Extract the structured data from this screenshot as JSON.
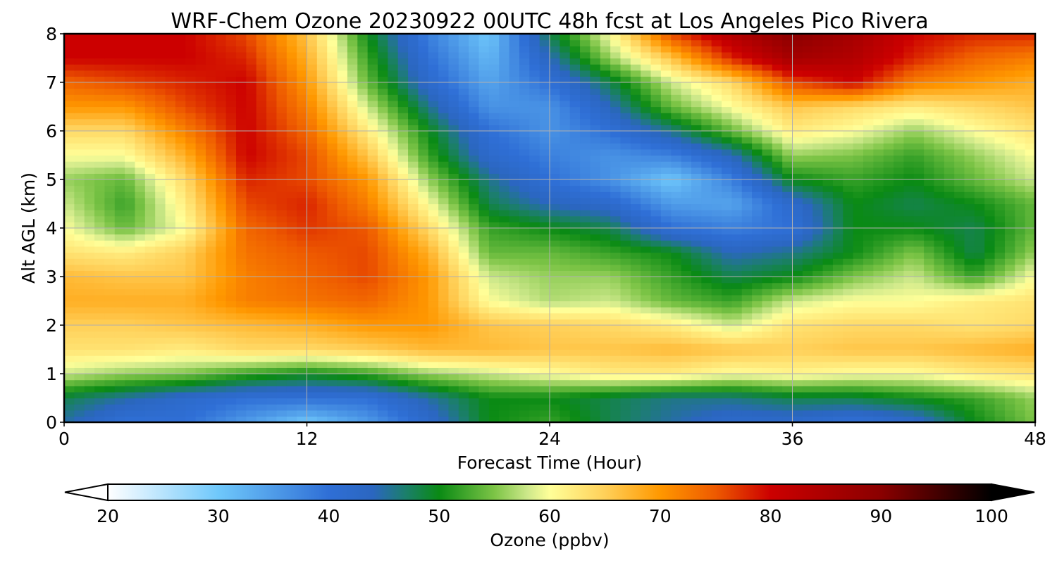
{
  "chart_data": {
    "type": "heatmap",
    "title": "WRF-Chem Ozone  20230922 00UTC 48h fcst at Los Angeles Pico Rivera",
    "xlabel": "Forecast Time (Hour)",
    "ylabel": "Alt AGL (km)",
    "xlim": [
      0,
      48
    ],
    "ylim": [
      0,
      8
    ],
    "xticks": [
      "0",
      "12",
      "24",
      "36",
      "48"
    ],
    "yticks": [
      "0",
      "1",
      "2",
      "3",
      "4",
      "5",
      "6",
      "7",
      "8"
    ],
    "grid": true,
    "x": [
      0,
      3,
      6,
      9,
      12,
      15,
      18,
      21,
      24,
      27,
      30,
      33,
      36,
      39,
      42,
      45,
      48
    ],
    "y": [
      0,
      0.5,
      1,
      1.5,
      2,
      2.5,
      3,
      3.5,
      4,
      4.5,
      5,
      5.5,
      6,
      6.5,
      7,
      7.5,
      8
    ],
    "z": [
      [
        45,
        40,
        40,
        35,
        30,
        35,
        42,
        50,
        52,
        48,
        45,
        42,
        42,
        40,
        42,
        50,
        55
      ],
      [
        48,
        45,
        42,
        40,
        40,
        40,
        45,
        50,
        50,
        48,
        46,
        46,
        48,
        48,
        50,
        52,
        56
      ],
      [
        58,
        56,
        55,
        52,
        50,
        52,
        56,
        58,
        60,
        62,
        62,
        60,
        61,
        60,
        60,
        62,
        63
      ],
      [
        63,
        63,
        62,
        64,
        64,
        65,
        67,
        67,
        66,
        66,
        67,
        66,
        65,
        66,
        66,
        67,
        68
      ],
      [
        65,
        65,
        66,
        67,
        68,
        70,
        70,
        66,
        65,
        64,
        62,
        58,
        63,
        64,
        64,
        63,
        64
      ],
      [
        68,
        68,
        68,
        72,
        73,
        74,
        70,
        60,
        57,
        58,
        54,
        52,
        58,
        60,
        60,
        62,
        63
      ],
      [
        67,
        66,
        66,
        72,
        74,
        76,
        70,
        58,
        56,
        56,
        52,
        48,
        50,
        55,
        58,
        52,
        60
      ],
      [
        63,
        62,
        65,
        73,
        75,
        76,
        68,
        54,
        54,
        52,
        50,
        44,
        46,
        50,
        55,
        48,
        56
      ],
      [
        60,
        54,
        60,
        74,
        77,
        75,
        64,
        52,
        50,
        48,
        40,
        38,
        40,
        50,
        50,
        48,
        54
      ],
      [
        58,
        52,
        62,
        76,
        78,
        72,
        60,
        48,
        44,
        42,
        35,
        34,
        42,
        50,
        48,
        50,
        54
      ],
      [
        56,
        54,
        64,
        78,
        76,
        70,
        56,
        46,
        40,
        36,
        30,
        38,
        50,
        52,
        50,
        54,
        58
      ],
      [
        60,
        60,
        68,
        80,
        76,
        66,
        52,
        42,
        38,
        36,
        38,
        44,
        56,
        55,
        52,
        56,
        60
      ],
      [
        64,
        64,
        72,
        80,
        74,
        62,
        50,
        40,
        36,
        40,
        46,
        54,
        62,
        60,
        56,
        60,
        63
      ],
      [
        70,
        70,
        76,
        80,
        72,
        58,
        46,
        36,
        36,
        44,
        54,
        60,
        66,
        64,
        62,
        64,
        66
      ],
      [
        74,
        76,
        78,
        80,
        70,
        54,
        42,
        34,
        40,
        48,
        58,
        64,
        76,
        80,
        72,
        70,
        68
      ],
      [
        80,
        80,
        80,
        78,
        68,
        52,
        40,
        32,
        44,
        56,
        66,
        78,
        86,
        84,
        78,
        74,
        72
      ],
      [
        80,
        80,
        80,
        76,
        66,
        50,
        38,
        30,
        48,
        60,
        76,
        84,
        90,
        86,
        80,
        78,
        78
      ]
    ],
    "colorbar": {
      "label": "Ozone  (ppbv)",
      "min": 20,
      "max": 100,
      "ticks": [
        "20",
        "30",
        "40",
        "50",
        "60",
        "70",
        "80",
        "90",
        "100"
      ],
      "extend": "both",
      "stops": [
        {
          "v": 20,
          "c": "#ffffff"
        },
        {
          "v": 30,
          "c": "#6fc8fb"
        },
        {
          "v": 40,
          "c": "#2f6fd6"
        },
        {
          "v": 44,
          "c": "#2b66c0"
        },
        {
          "v": 47,
          "c": "#1b7f6a"
        },
        {
          "v": 50,
          "c": "#0a8a14"
        },
        {
          "v": 55,
          "c": "#7cc446"
        },
        {
          "v": 58,
          "c": "#cde88a"
        },
        {
          "v": 60,
          "c": "#ffff99"
        },
        {
          "v": 65,
          "c": "#ffd059"
        },
        {
          "v": 70,
          "c": "#ff9800"
        },
        {
          "v": 75,
          "c": "#ee5a00"
        },
        {
          "v": 80,
          "c": "#cc0000"
        },
        {
          "v": 90,
          "c": "#8a0000"
        },
        {
          "v": 100,
          "c": "#000000"
        }
      ]
    }
  }
}
